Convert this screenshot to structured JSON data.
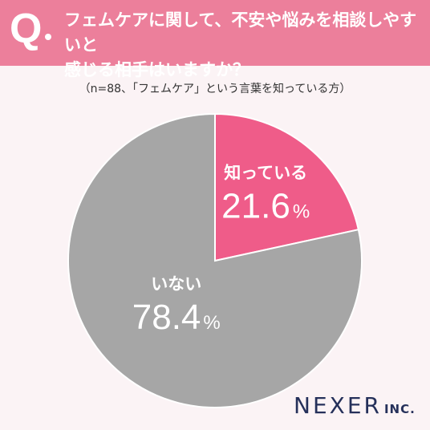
{
  "header": {
    "q_label": "Q",
    "question_line1": "フェムケアに関して、不安や悩みを相談しやすいと",
    "question_line2": "感じる相手はいますか？"
  },
  "note": "（n=88、「フェムケア」という言葉を知っている方）",
  "chart_data": {
    "type": "pie",
    "title": "",
    "slices": [
      {
        "label": "知っている",
        "value": 21.6,
        "value_text": "21.6",
        "unit": "%",
        "color": "#ef5c89"
      },
      {
        "label": "いない",
        "value": 78.4,
        "value_text": "78.4",
        "unit": "%",
        "color": "#a6a6a6"
      }
    ]
  },
  "brand": {
    "name": "NEXER",
    "suffix": "INC."
  },
  "colors": {
    "header_bg": "#ec7f9b",
    "page_bg": "#fbf3f5",
    "brand": "#25305a"
  }
}
